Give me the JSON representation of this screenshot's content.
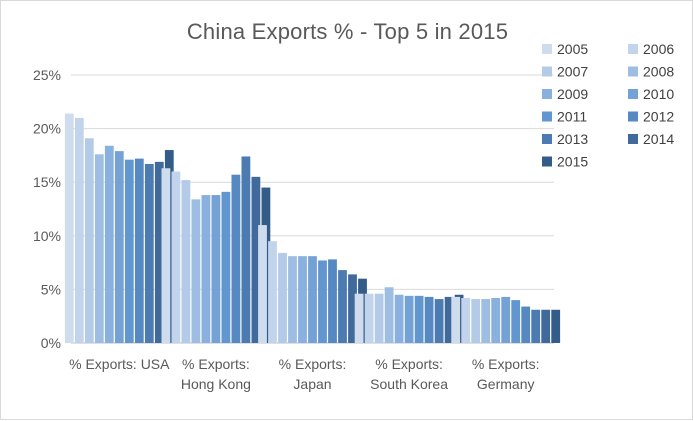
{
  "chart_data": {
    "type": "bar",
    "title": "China Exports % - Top 5 in 2015",
    "xlabel": "",
    "ylabel": "",
    "ylim": [
      0,
      25
    ],
    "yticks": [
      "0%",
      "5%",
      "10%",
      "15%",
      "20%",
      "25%"
    ],
    "grid": true,
    "legend_position": "top-right",
    "categories": [
      [
        "% Exports: USA"
      ],
      [
        "% Exports:",
        "Hong Kong"
      ],
      [
        "% Exports:",
        "Japan"
      ],
      [
        "% Exports:",
        "South Korea"
      ],
      [
        "% Exports:",
        "Germany"
      ]
    ],
    "series": [
      {
        "name": "2005",
        "color": "#cfdcee",
        "values": [
          21.4,
          16.3,
          11.0,
          4.6,
          4.3
        ]
      },
      {
        "name": "2006",
        "color": "#c2d4ec",
        "values": [
          21.0,
          16.0,
          9.5,
          4.6,
          4.2
        ]
      },
      {
        "name": "2007",
        "color": "#b4cbe8",
        "values": [
          19.1,
          15.2,
          8.4,
          4.6,
          4.1
        ]
      },
      {
        "name": "2008",
        "color": "#9dbde3",
        "values": [
          17.6,
          13.4,
          8.1,
          5.2,
          4.1
        ]
      },
      {
        "name": "2009",
        "color": "#89b0de",
        "values": [
          18.4,
          13.8,
          8.1,
          4.5,
          4.2
        ]
      },
      {
        "name": "2010",
        "color": "#74a2d6",
        "values": [
          17.9,
          13.8,
          8.1,
          4.4,
          4.3
        ]
      },
      {
        "name": "2011",
        "color": "#6296cf",
        "values": [
          17.1,
          14.1,
          7.7,
          4.4,
          4.0
        ]
      },
      {
        "name": "2012",
        "color": "#5688c2",
        "values": [
          17.2,
          15.7,
          7.8,
          4.3,
          3.4
        ]
      },
      {
        "name": "2013",
        "color": "#4c7bb2",
        "values": [
          16.7,
          17.4,
          6.8,
          4.1,
          3.1
        ]
      },
      {
        "name": "2014",
        "color": "#3f6a9b",
        "values": [
          16.9,
          15.5,
          6.4,
          4.3,
          3.1
        ]
      },
      {
        "name": "2015",
        "color": "#345c88",
        "values": [
          18.0,
          14.5,
          6.0,
          4.5,
          3.1
        ]
      }
    ]
  }
}
